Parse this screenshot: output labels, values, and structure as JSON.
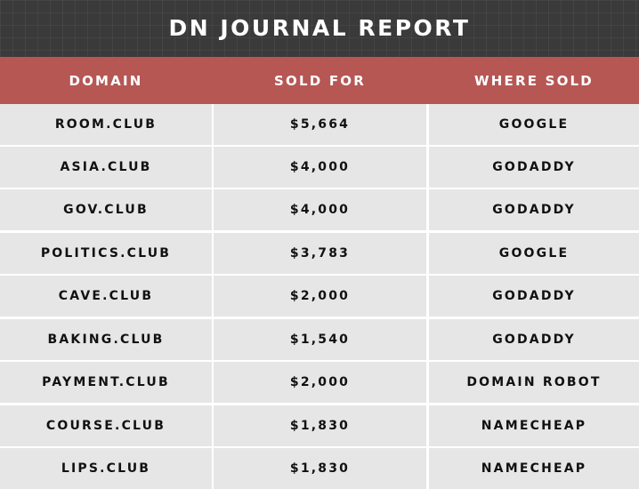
{
  "title": "DN JOURNAL REPORT",
  "columns": [
    "DOMAIN",
    "SOLD FOR",
    "WHERE SOLD"
  ],
  "rows": [
    {
      "domain": "ROOM.CLUB",
      "sold_for": "$5,664",
      "where_sold": "GOOGLE"
    },
    {
      "domain": "ASIA.CLUB",
      "sold_for": "$4,000",
      "where_sold": "GODADDY"
    },
    {
      "domain": "GOV.CLUB",
      "sold_for": "$4,000",
      "where_sold": "GODADDY"
    },
    {
      "domain": "POLITICS.CLUB",
      "sold_for": "$3,783",
      "where_sold": "GOOGLE"
    },
    {
      "domain": "CAVE.CLUB",
      "sold_for": "$2,000",
      "where_sold": "GODADDY"
    },
    {
      "domain": "BAKING.CLUB",
      "sold_for": "$1,540",
      "where_sold": "GODADDY"
    },
    {
      "domain": "PAYMENT.CLUB",
      "sold_for": "$2,000",
      "where_sold": "DOMAIN ROBOT"
    },
    {
      "domain": "COURSE.CLUB",
      "sold_for": "$1,830",
      "where_sold": "NAMECHEAP"
    },
    {
      "domain": "LIPS.CLUB",
      "sold_for": "$1,830",
      "where_sold": "NAMECHEAP"
    }
  ],
  "colors": {
    "title_bar": "#3a3a3a",
    "header_row": "#b65754",
    "cell": "#e6e6e6"
  }
}
